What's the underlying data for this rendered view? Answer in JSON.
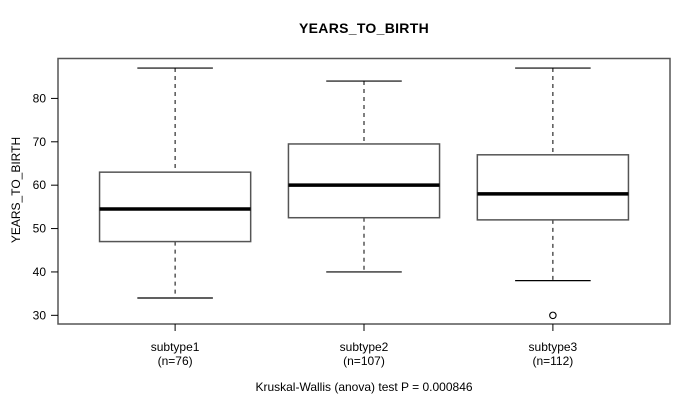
{
  "chart_data": {
    "type": "boxplot",
    "title": "YEARS_TO_BIRTH",
    "ylabel": "YEARS_TO_BIRTH",
    "xlabel": "",
    "caption": "Kruskal-Wallis (anova) test P = 0.000846",
    "ylim": [
      28,
      89.2
    ],
    "y_ticks": [
      30,
      40,
      50,
      60,
      70,
      80
    ],
    "grid": false,
    "whisker_linetype": "dashed",
    "groups": [
      {
        "label": "subtype1",
        "sublabel": "(n=76)",
        "n": 76,
        "whisker_low": 34,
        "q1": 47,
        "median": 54.5,
        "q3": 63,
        "whisker_high": 87,
        "outliers": []
      },
      {
        "label": "subtype2",
        "sublabel": "(n=107)",
        "n": 107,
        "whisker_low": 40,
        "q1": 52.5,
        "median": 60,
        "q3": 69.5,
        "whisker_high": 84,
        "outliers": []
      },
      {
        "label": "subtype3",
        "sublabel": "(n=112)",
        "n": 112,
        "whisker_low": 38,
        "q1": 52,
        "median": 58,
        "q3": 67,
        "whisker_high": 87,
        "outliers": [
          30
        ]
      }
    ],
    "style": {
      "background": "#ffffff",
      "box_fill": "#ffffff",
      "box_border": "#555555",
      "frame_color": "#555555",
      "line_color": "#000000",
      "median_color": "#000000",
      "text_color": "#000000"
    }
  }
}
